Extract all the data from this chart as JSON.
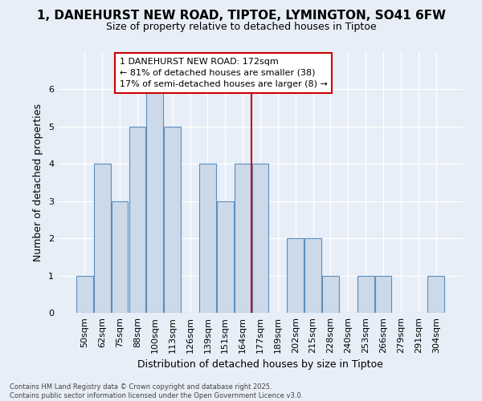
{
  "title1": "1, DANEHURST NEW ROAD, TIPTOE, LYMINGTON, SO41 6FW",
  "title2": "Size of property relative to detached houses in Tiptoe",
  "xlabel": "Distribution of detached houses by size in Tiptoe",
  "ylabel": "Number of detached properties",
  "bar_labels": [
    "50sqm",
    "62sqm",
    "75sqm",
    "88sqm",
    "100sqm",
    "113sqm",
    "126sqm",
    "139sqm",
    "151sqm",
    "164sqm",
    "177sqm",
    "189sqm",
    "202sqm",
    "215sqm",
    "228sqm",
    "240sqm",
    "253sqm",
    "266sqm",
    "279sqm",
    "291sqm",
    "304sqm"
  ],
  "bar_values": [
    1,
    4,
    3,
    5,
    6,
    5,
    0,
    4,
    3,
    4,
    4,
    0,
    2,
    2,
    1,
    0,
    1,
    1,
    0,
    0,
    1
  ],
  "bar_color": "#ccd9e8",
  "bar_edge_color": "#5a8fc0",
  "vline_color": "#cc0000",
  "vline_x": 9.5,
  "annotation_text": "1 DANEHURST NEW ROAD: 172sqm\n← 81% of detached houses are smaller (38)\n17% of semi-detached houses are larger (8) →",
  "annotation_box_facecolor": "#ffffff",
  "annotation_box_edgecolor": "#cc0000",
  "ylim": [
    0,
    7
  ],
  "yticks": [
    0,
    1,
    2,
    3,
    4,
    5,
    6
  ],
  "footer_text": "Contains HM Land Registry data © Crown copyright and database right 2025.\nContains public sector information licensed under the Open Government Licence v3.0.",
  "bg_color": "#e8eef8",
  "plot_bg_color": "#e8eef8",
  "title1_fontsize": 11,
  "title2_fontsize": 9,
  "ylabel_fontsize": 9,
  "xlabel_fontsize": 9,
  "tick_fontsize": 8,
  "footer_fontsize": 6,
  "annot_fontsize": 8
}
